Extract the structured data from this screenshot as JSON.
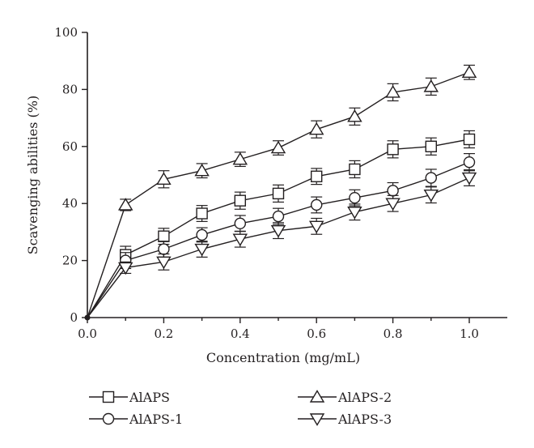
{
  "chart_data": {
    "type": "line",
    "title": "",
    "xlabel": "Concentration (mg/mL)",
    "ylabel": "Scavenging abilities (%)",
    "xlim": [
      0,
      1.1
    ],
    "ylim": [
      0,
      100
    ],
    "x_ticks": [
      "0.0",
      "0.2",
      "0.4",
      "0.6",
      "0.8",
      "1.0"
    ],
    "y_ticks": [
      "0",
      "20",
      "40",
      "60",
      "80",
      "100"
    ],
    "x": [
      0,
      0.1,
      0.2,
      0.3,
      0.4,
      0.5,
      0.6,
      0.7,
      0.8,
      0.9,
      1.0
    ],
    "legend_position": "bottom",
    "grid": false,
    "series": [
      {
        "name": "AlAPS",
        "marker": "square",
        "values": [
          0,
          22,
          28.5,
          36.5,
          41,
          43.5,
          49.5,
          52,
          59,
          60,
          62.5
        ],
        "errors": [
          0,
          3,
          2.8,
          2.8,
          3,
          3,
          2.8,
          3,
          3,
          3,
          3
        ]
      },
      {
        "name": "AlAPS-1",
        "marker": "circle",
        "values": [
          0,
          20,
          24,
          29,
          33,
          35.5,
          39.5,
          42,
          44.5,
          49,
          54.5
        ],
        "errors": [
          0,
          2.8,
          2.8,
          2.5,
          2.8,
          2.8,
          2.8,
          2.8,
          2.8,
          3,
          3
        ]
      },
      {
        "name": "AlAPS-2",
        "marker": "triangle-up",
        "values": [
          0,
          39.5,
          48.5,
          51.5,
          55.5,
          59.5,
          66,
          70.5,
          79,
          81,
          86
        ],
        "errors": [
          0,
          2,
          3,
          2.5,
          2.5,
          2.5,
          3,
          3,
          3,
          3,
          2.5
        ]
      },
      {
        "name": "AlAPS-3",
        "marker": "triangle-down",
        "values": [
          0,
          17.5,
          19.5,
          24,
          27.5,
          30.5,
          32,
          37,
          40,
          43,
          49
        ],
        "errors": [
          0,
          2,
          2.8,
          2.8,
          2.8,
          2.8,
          2.8,
          2.8,
          2.8,
          2.8,
          2.8
        ]
      }
    ],
    "legend": [
      {
        "label": "AlAPS",
        "marker": "square"
      },
      {
        "label": "AlAPS-2",
        "marker": "triangle-up"
      },
      {
        "label": "AlAPS-1",
        "marker": "circle"
      },
      {
        "label": "AlAPS-3",
        "marker": "triangle-down"
      }
    ]
  }
}
